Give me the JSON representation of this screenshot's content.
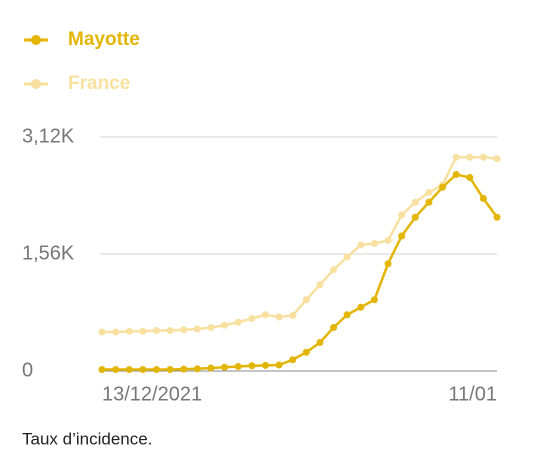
{
  "chart_data": {
    "type": "line",
    "categories": [
      "13/12/2021",
      null,
      null,
      null,
      null,
      null,
      null,
      null,
      null,
      null,
      null,
      null,
      null,
      null,
      null,
      null,
      null,
      null,
      null,
      null,
      null,
      null,
      null,
      null,
      null,
      null,
      null,
      null,
      null,
      "11/01"
    ],
    "series": [
      {
        "name": "Mayotte",
        "color": "#e3b505",
        "values": [
          20,
          20,
          20,
          20,
          20,
          20,
          25,
          30,
          40,
          50,
          60,
          70,
          75,
          80,
          150,
          250,
          380,
          580,
          750,
          850,
          950,
          1430,
          1800,
          2050,
          2250,
          2450,
          2620,
          2580,
          2300,
          2050
        ]
      },
      {
        "name": "France",
        "color": "#f7e0a0",
        "values": [
          520,
          520,
          530,
          530,
          540,
          540,
          550,
          560,
          580,
          610,
          650,
          700,
          750,
          720,
          740,
          950,
          1150,
          1350,
          1520,
          1680,
          1700,
          1740,
          2080,
          2250,
          2380,
          2480,
          2850,
          2850,
          2850,
          2830
        ]
      }
    ],
    "ylim": [
      0,
      3120
    ],
    "yticks": [
      0,
      {
        "value": 1560,
        "label": "1,56K"
      },
      {
        "value": 3120,
        "label": "3,12K"
      }
    ],
    "grid": true,
    "caption": "Taux d’incidence."
  }
}
